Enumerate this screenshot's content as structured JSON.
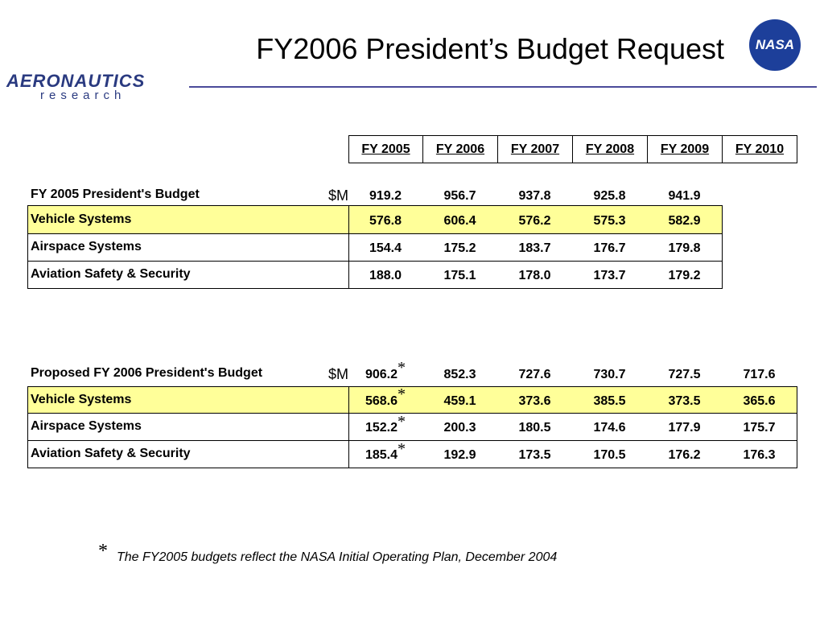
{
  "title": "FY2006 President’s Budget Request",
  "logo": {
    "brand": "AERONAUTICS",
    "sub": "research"
  },
  "agency_logo": "NASA",
  "columns": [
    "FY 2005",
    "FY 2006",
    "FY 2007",
    "FY 2008",
    "FY 2009",
    "FY 2010"
  ],
  "table1": {
    "unit": "$M",
    "rows": [
      {
        "label": "FY 2005 President's Budget",
        "values": [
          "919.2",
          "956.7",
          "937.8",
          "925.8",
          "941.9"
        ]
      },
      {
        "label": "Vehicle Systems",
        "values": [
          "576.8",
          "606.4",
          "576.2",
          "575.3",
          "582.9"
        ]
      },
      {
        "label": "Airspace Systems",
        "values": [
          "154.4",
          "175.2",
          "183.7",
          "176.7",
          "179.8"
        ]
      },
      {
        "label": "Aviation Safety & Security",
        "values": [
          "188.0",
          "175.1",
          "178.0",
          "173.7",
          "179.2"
        ]
      }
    ]
  },
  "table2": {
    "unit": "$M",
    "rows": [
      {
        "label": "Proposed FY 2006 President's Budget",
        "values": [
          "906.2",
          "852.3",
          "727.6",
          "730.7",
          "727.5",
          "717.6"
        ]
      },
      {
        "label": "Vehicle Systems",
        "values": [
          "568.6",
          "459.1",
          "373.6",
          "385.5",
          "373.5",
          "365.6"
        ]
      },
      {
        "label": "Airspace Systems",
        "values": [
          "152.2",
          "200.3",
          "180.5",
          "174.6",
          "177.9",
          "175.7"
        ]
      },
      {
        "label": "Aviation Safety & Security",
        "values": [
          "185.4",
          "192.9",
          "173.5",
          "170.5",
          "176.2",
          "176.3"
        ]
      }
    ]
  },
  "footnote": {
    "marker": "*",
    "text": "The FY2005 budgets reflect the NASA Initial Operating Plan, December 2004"
  }
}
